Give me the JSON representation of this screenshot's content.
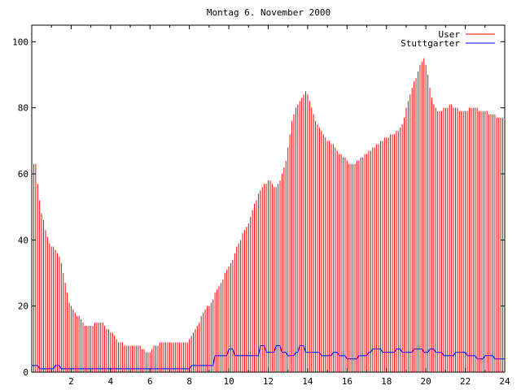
{
  "chart_data": {
    "type": "bar",
    "title": "Montag 6. November 2000",
    "xlabel": "",
    "ylabel": "",
    "xlim": [
      0,
      24
    ],
    "ylim": [
      0,
      105
    ],
    "x_ticks": [
      2,
      4,
      6,
      8,
      10,
      12,
      14,
      16,
      18,
      20,
      22,
      24
    ],
    "y_ticks": [
      0,
      20,
      40,
      60,
      80,
      100
    ],
    "grid": false,
    "legend": "top-right",
    "colors": {
      "user": "#ff0000",
      "stuttgarter": "#0000ff",
      "axis": "#000000"
    },
    "series": [
      {
        "name": "User",
        "style": "impulses",
        "x_step": 0.1,
        "values": [
          65,
          63,
          63,
          57,
          52,
          48,
          46,
          43,
          41,
          39,
          38,
          38,
          37,
          36,
          35,
          33,
          30,
          27,
          24,
          21,
          20,
          19,
          18,
          17,
          17,
          16,
          15,
          14,
          14,
          14,
          14,
          14,
          15,
          15,
          15,
          15,
          15,
          14,
          13,
          13,
          12,
          12,
          11,
          10,
          9,
          9,
          9,
          8,
          8,
          8,
          8,
          8,
          8,
          8,
          8,
          8,
          7,
          7,
          6,
          6,
          6,
          7,
          8,
          8,
          8,
          9,
          9,
          9,
          9,
          9,
          9,
          9,
          9,
          9,
          9,
          9,
          9,
          9,
          9,
          9,
          10,
          11,
          12,
          13,
          14,
          15,
          17,
          18,
          19,
          20,
          20,
          21,
          22,
          24,
          25,
          26,
          27,
          28,
          30,
          31,
          32,
          33,
          34,
          36,
          38,
          39,
          40,
          42,
          43,
          44,
          45,
          47,
          49,
          51,
          52,
          54,
          55,
          56,
          57,
          57,
          58,
          58,
          57,
          56,
          56,
          57,
          58,
          60,
          62,
          64,
          68,
          72,
          76,
          78,
          80,
          81,
          82,
          83,
          84,
          85,
          84,
          82,
          80,
          78,
          76,
          75,
          74,
          73,
          72,
          71,
          70,
          70,
          69,
          69,
          68,
          67,
          66,
          66,
          65,
          65,
          64,
          63,
          63,
          63,
          63,
          64,
          64,
          65,
          65,
          66,
          66,
          67,
          67,
          68,
          68,
          69,
          69,
          70,
          70,
          71,
          71,
          71,
          72,
          72,
          72,
          73,
          73,
          74,
          75,
          77,
          80,
          82,
          84,
          86,
          88,
          89,
          91,
          93,
          94,
          95,
          93,
          90,
          86,
          83,
          81,
          80,
          79,
          79,
          79,
          80,
          80,
          80,
          81,
          81,
          80,
          80,
          80,
          79,
          79,
          79,
          79,
          79,
          80,
          80,
          80,
          80,
          80,
          79,
          79,
          79,
          79,
          79,
          78,
          78,
          78,
          78,
          77,
          77,
          77,
          77
        ]
      },
      {
        "name": "Stuttgarter",
        "style": "line",
        "x": [
          0,
          0.3,
          0.4,
          1.1,
          1.2,
          1.4,
          1.5,
          8.0,
          8.1,
          9.2,
          9.3,
          9.9,
          10.0,
          10.2,
          10.3,
          11.5,
          11.6,
          11.8,
          11.9,
          12.3,
          12.4,
          12.6,
          12.7,
          12.9,
          13.0,
          13.3,
          13.4,
          13.5,
          13.6,
          13.8,
          13.9,
          14.6,
          14.7,
          15.2,
          15.3,
          15.5,
          15.6,
          15.9,
          16.0,
          16.5,
          16.6,
          17.0,
          17.1,
          17.2,
          17.3,
          17.7,
          17.8,
          18.4,
          18.5,
          18.7,
          18.8,
          19.3,
          19.4,
          19.8,
          19.9,
          20.1,
          20.2,
          20.4,
          20.5,
          20.8,
          20.9,
          21.4,
          21.5,
          22.0,
          22.1,
          22.5,
          22.6,
          22.9,
          23.0,
          23.4,
          23.5,
          24.0
        ],
        "values": [
          2,
          2,
          1,
          1,
          2,
          2,
          1,
          1,
          2,
          2,
          5,
          5,
          7,
          7,
          5,
          5,
          8,
          8,
          6,
          6,
          8,
          8,
          6,
          6,
          5,
          5,
          6,
          6,
          8,
          8,
          6,
          6,
          5,
          5,
          6,
          6,
          5,
          5,
          4,
          4,
          5,
          5,
          6,
          6,
          7,
          7,
          6,
          6,
          7,
          7,
          6,
          6,
          7,
          7,
          6,
          6,
          7,
          7,
          6,
          6,
          5,
          5,
          6,
          6,
          5,
          5,
          4,
          4,
          5,
          5,
          4,
          4
        ]
      }
    ]
  }
}
